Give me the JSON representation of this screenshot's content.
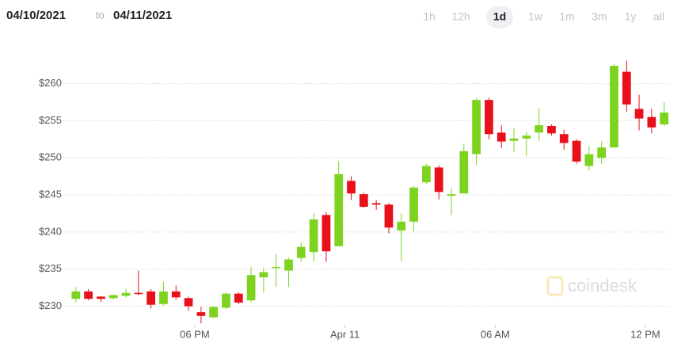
{
  "header": {
    "from": "04/10/2021",
    "separator": "to",
    "to": "04/11/2021",
    "ranges": [
      "1h",
      "12h",
      "1d",
      "1w",
      "1m",
      "3m",
      "1y",
      "all"
    ],
    "selected_range": "1d"
  },
  "watermark": "coindesk",
  "chart_data": {
    "type": "candlestick",
    "categories": [
      null,
      null,
      null,
      null,
      null,
      null,
      null,
      null,
      null,
      null,
      null,
      null,
      null,
      null,
      null,
      null,
      null,
      null,
      null,
      null,
      null,
      null,
      null,
      null,
      null,
      null,
      null,
      null,
      null,
      null,
      null,
      null,
      null,
      null,
      null,
      null,
      null,
      null,
      null,
      null,
      null,
      null,
      null,
      null,
      null,
      null,
      null,
      null
    ],
    "open": [
      231.0,
      232.0,
      231.3,
      231.1,
      231.4,
      231.8,
      232.0,
      230.3,
      232.0,
      231.1,
      229.2,
      228.5,
      229.8,
      231.7,
      230.8,
      233.9,
      235.2,
      234.8,
      236.5,
      237.3,
      242.3,
      238.1,
      246.9,
      245.1,
      243.9,
      243.7,
      240.2,
      241.4,
      246.7,
      248.7,
      244.9,
      245.2,
      250.5,
      257.8,
      253.4,
      252.3,
      252.6,
      253.4,
      254.3,
      253.2,
      252.3,
      248.9,
      250.0,
      251.4,
      261.6,
      256.6,
      255.5,
      254.5
    ],
    "high": [
      232.6,
      232.3,
      231.4,
      231.6,
      232.4,
      234.8,
      232.3,
      233.3,
      232.8,
      231.3,
      229.9,
      230.0,
      231.9,
      231.9,
      235.3,
      235.2,
      237.0,
      236.6,
      238.6,
      242.5,
      242.7,
      249.6,
      247.5,
      245.3,
      244.3,
      243.9,
      242.5,
      246.2,
      249.2,
      249.0,
      245.9,
      251.9,
      258.1,
      258.1,
      254.4,
      254.0,
      253.5,
      256.7,
      254.5,
      253.8,
      252.5,
      251.6,
      252.2,
      262.6,
      263.1,
      258.5,
      256.6,
      257.5
    ],
    "low": [
      230.5,
      230.8,
      230.6,
      230.9,
      231.2,
      231.5,
      229.7,
      230.1,
      230.9,
      229.4,
      227.7,
      228.4,
      229.6,
      230.3,
      230.5,
      231.8,
      232.6,
      232.6,
      236.0,
      236.0,
      236.0,
      238.1,
      244.3,
      243.3,
      243.0,
      239.8,
      236.1,
      240.1,
      246.5,
      244.4,
      242.3,
      245.2,
      249.0,
      252.5,
      251.3,
      250.8,
      250.3,
      252.3,
      253.0,
      251.1,
      249.2,
      248.3,
      249.2,
      251.4,
      256.2,
      253.7,
      253.3,
      254.3
    ],
    "close": [
      232.0,
      231.0,
      231.0,
      231.5,
      231.8,
      231.7,
      230.2,
      232.0,
      231.2,
      230.0,
      228.7,
      229.9,
      231.7,
      230.5,
      234.2,
      234.6,
      235.3,
      236.3,
      238.0,
      241.7,
      237.4,
      247.8,
      245.2,
      243.4,
      243.7,
      240.6,
      241.4,
      246.0,
      248.9,
      245.4,
      245.1,
      250.9,
      257.8,
      253.2,
      252.2,
      252.6,
      253.0,
      254.4,
      253.3,
      252.0,
      249.5,
      250.5,
      251.4,
      262.4,
      257.2,
      255.3,
      254.1,
      256.1
    ],
    "up_color": "#7ed321",
    "down_color": "#e8101a",
    "xlim": [
      -1,
      47.4
    ],
    "xticks": [
      {
        "value": 9.5,
        "label": "06 PM"
      },
      {
        "value": 21.5,
        "label": "Apr 11"
      },
      {
        "value": 33.5,
        "label": "06 AM"
      },
      {
        "value": 45.5,
        "label": "12 PM"
      }
    ],
    "ylim": [
      227.5,
      267
    ],
    "yticks": [
      {
        "value": 230,
        "label": "$230"
      },
      {
        "value": 235,
        "label": "$235"
      },
      {
        "value": 240,
        "label": "$240"
      },
      {
        "value": 245,
        "label": "$245"
      },
      {
        "value": 250,
        "label": "$250"
      },
      {
        "value": 255,
        "label": "$255"
      },
      {
        "value": 260,
        "label": "$260"
      }
    ],
    "grid": true
  }
}
